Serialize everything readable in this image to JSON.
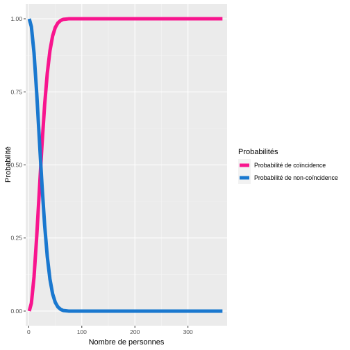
{
  "chart_data": {
    "type": "line",
    "xlabel": "Nombre de personnes",
    "ylabel": "Probabilité",
    "xlim": [
      -5.7,
      373.7
    ],
    "ylim": [
      -0.05,
      1.05
    ],
    "x_ticks": [
      0,
      100,
      200,
      300
    ],
    "y_ticks": [
      0.0,
      0.25,
      0.5,
      0.75,
      1.0
    ],
    "y_tick_labels": [
      "0.00",
      "0.25",
      "0.50",
      "0.75",
      "1.00"
    ],
    "x_tick_labels": [
      "0",
      "100",
      "200",
      "300"
    ],
    "grid": true,
    "legend": {
      "title": "Probabilités",
      "position": "right"
    },
    "x": [
      1,
      5,
      10,
      15,
      20,
      23,
      25,
      30,
      35,
      40,
      45,
      50,
      55,
      60,
      65,
      70,
      75,
      80,
      90,
      100,
      150,
      200,
      250,
      300,
      365
    ],
    "series": [
      {
        "name": "Probabilité de coïncidence",
        "color": "#f8158e",
        "values": [
          0.0,
          0.027,
          0.117,
          0.253,
          0.411,
          0.507,
          0.569,
          0.706,
          0.814,
          0.891,
          0.941,
          0.97,
          0.986,
          0.994,
          0.998,
          0.999,
          1.0,
          1.0,
          1.0,
          1.0,
          1.0,
          1.0,
          1.0,
          1.0,
          1.0
        ]
      },
      {
        "name": "Probabilité de non-coïncidence",
        "color": "#1a78cf",
        "values": [
          1.0,
          0.973,
          0.883,
          0.747,
          0.589,
          0.493,
          0.431,
          0.294,
          0.186,
          0.109,
          0.059,
          0.03,
          0.014,
          0.006,
          0.002,
          0.001,
          0.0,
          0.0,
          0.0,
          0.0,
          0.0,
          0.0,
          0.0,
          0.0,
          0.0
        ]
      }
    ]
  },
  "style": {
    "panel_background": "#ebebeb",
    "grid_major": "#ffffff",
    "grid_minor": "#f5f5f5"
  }
}
